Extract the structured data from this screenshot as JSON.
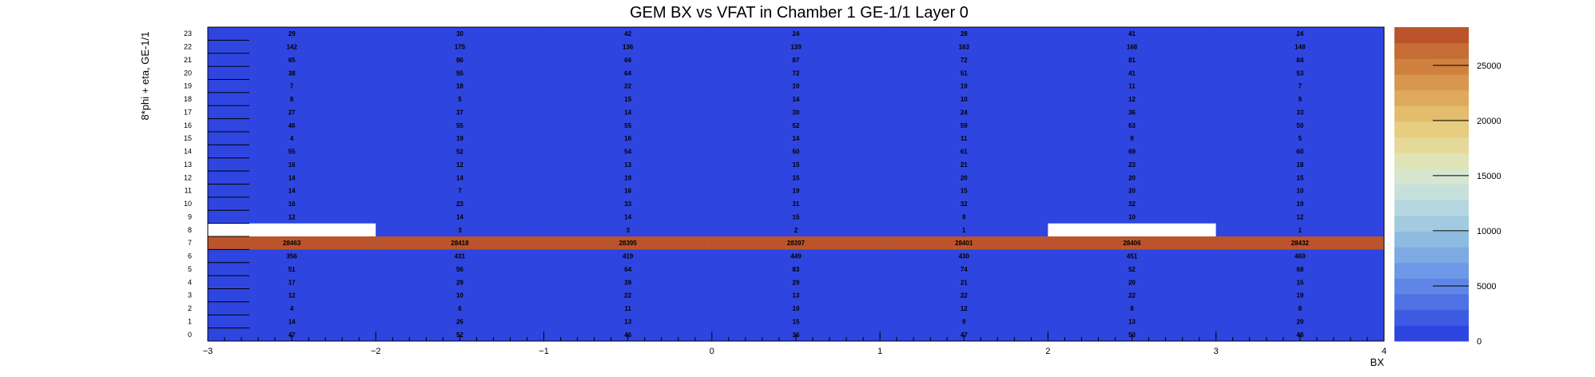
{
  "chart_data": {
    "type": "heatmap",
    "title": "GEM BX vs VFAT in Chamber 1 GE-1/1 Layer 0",
    "xlabel": "BX",
    "ylabel": "8*phi + eta, GE-1/1",
    "xlim": [
      -3,
      4
    ],
    "ylim": [
      0,
      24
    ],
    "x_ticks": [
      -3,
      -2,
      -1,
      0,
      1,
      2,
      3,
      4
    ],
    "x_tick_labels": [
      "−3",
      "−2",
      "−1",
      "0",
      "1",
      "2",
      "3",
      "4"
    ],
    "y_tick_labels": [
      "0",
      "1",
      "2",
      "3",
      "4",
      "5",
      "6",
      "7",
      "8",
      "9",
      "10",
      "11",
      "12",
      "13",
      "14",
      "15",
      "16",
      "17",
      "18",
      "19",
      "20",
      "21",
      "22",
      "23"
    ],
    "bins": [
      -2.5,
      -1.5,
      -0.5,
      0.5,
      1.5,
      2.5,
      3.5
    ],
    "rows": [
      {
        "row": 0,
        "values": [
          47,
          52,
          46,
          36,
          47,
          50,
          48
        ]
      },
      {
        "row": 1,
        "values": [
          14,
          26,
          13,
          15,
          9,
          13,
          20
        ]
      },
      {
        "row": 2,
        "values": [
          4,
          6,
          11,
          10,
          12,
          8,
          8
        ]
      },
      {
        "row": 3,
        "values": [
          12,
          10,
          22,
          13,
          22,
          22,
          19
        ]
      },
      {
        "row": 4,
        "values": [
          17,
          29,
          39,
          29,
          21,
          20,
          15
        ]
      },
      {
        "row": 5,
        "values": [
          51,
          56,
          64,
          83,
          74,
          52,
          68
        ]
      },
      {
        "row": 6,
        "values": [
          356,
          431,
          419,
          449,
          430,
          451,
          460
        ]
      },
      {
        "row": 7,
        "values": [
          28463,
          28418,
          28395,
          28397,
          28401,
          28406,
          28432
        ]
      },
      {
        "row": 8,
        "values": [
          null,
          3,
          3,
          2,
          1,
          null,
          1
        ]
      },
      {
        "row": 9,
        "values": [
          12,
          14,
          14,
          15,
          8,
          10,
          12
        ]
      },
      {
        "row": 10,
        "values": [
          16,
          23,
          33,
          31,
          32,
          32,
          19
        ]
      },
      {
        "row": 11,
        "values": [
          14,
          7,
          16,
          19,
          15,
          20,
          10
        ]
      },
      {
        "row": 12,
        "values": [
          14,
          14,
          19,
          15,
          20,
          20,
          15
        ]
      },
      {
        "row": 13,
        "values": [
          16,
          12,
          13,
          15,
          21,
          23,
          18
        ]
      },
      {
        "row": 14,
        "values": [
          55,
          52,
          54,
          50,
          61,
          69,
          60
        ]
      },
      {
        "row": 15,
        "values": [
          4,
          19,
          16,
          14,
          11,
          9,
          5
        ]
      },
      {
        "row": 16,
        "values": [
          46,
          55,
          55,
          52,
          59,
          63,
          50
        ]
      },
      {
        "row": 17,
        "values": [
          27,
          37,
          14,
          30,
          24,
          36,
          33
        ]
      },
      {
        "row": 18,
        "values": [
          8,
          5,
          15,
          14,
          10,
          12,
          9
        ]
      },
      {
        "row": 19,
        "values": [
          7,
          18,
          22,
          10,
          19,
          11,
          7
        ]
      },
      {
        "row": 20,
        "values": [
          38,
          55,
          64,
          72,
          51,
          41,
          53
        ]
      },
      {
        "row": 21,
        "values": [
          65,
          86,
          66,
          87,
          72,
          81,
          84
        ]
      },
      {
        "row": 22,
        "values": [
          142,
          175,
          136,
          139,
          163,
          168,
          148
        ]
      },
      {
        "row": 23,
        "values": [
          29,
          30,
          42,
          24,
          28,
          41,
          24
        ]
      }
    ],
    "colorbar": {
      "min": 0,
      "max": 28463,
      "ticks": [
        0,
        5000,
        10000,
        15000,
        20000,
        25000
      ],
      "tick_labels": [
        "0",
        "5000",
        "10000",
        "15000",
        "20000",
        "25000"
      ],
      "colors": [
        "#2f45e0",
        "#3d5be2",
        "#4f72e4",
        "#5f86e6",
        "#6e98e8",
        "#7eaae4",
        "#8fbbe0",
        "#a3cbe0",
        "#b5d7e0",
        "#c6e1dc",
        "#d6e6cf",
        "#e0e3b6",
        "#e5d99a",
        "#e6cd80",
        "#e3bd6c",
        "#dfaa5c",
        "#d8964e",
        "#d0803f",
        "#c66c35",
        "#bb542b"
      ]
    },
    "grid": false,
    "empty_color": "#ffffff"
  }
}
